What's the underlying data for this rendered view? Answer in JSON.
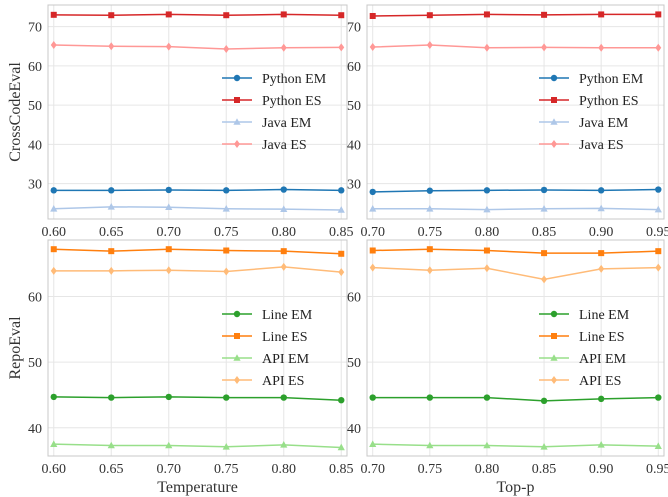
{
  "chart_data": [
    {
      "type": "line",
      "x": [
        0.6,
        0.65,
        0.7,
        0.75,
        0.8,
        0.85
      ],
      "xticks": [
        "0.60",
        "0.65",
        "0.70",
        "0.75",
        "0.80",
        "0.85"
      ],
      "xlim": [
        0.595,
        0.855
      ],
      "ylim": [
        21.0,
        75.5
      ],
      "yticks": [
        "30",
        "40",
        "50",
        "60",
        "70"
      ],
      "xlabel": "",
      "ylabel": "CrossCodeEval",
      "grid": true,
      "legend_position": "right",
      "series": [
        {
          "name": "Python EM",
          "color": "#1f77b4",
          "marker": "circle",
          "values": [
            28.3,
            28.3,
            28.4,
            28.3,
            28.5,
            28.3
          ]
        },
        {
          "name": "Python ES",
          "color": "#d62728",
          "marker": "square",
          "values": [
            73.0,
            72.9,
            73.1,
            72.9,
            73.1,
            72.9
          ]
        },
        {
          "name": "Java EM",
          "color": "#aec7e8",
          "marker": "triangle",
          "values": [
            23.6,
            24.1,
            24.0,
            23.6,
            23.5,
            23.3
          ]
        },
        {
          "name": "Java ES",
          "color": "#ff9896",
          "marker": "diamond",
          "values": [
            65.3,
            65.0,
            64.9,
            64.3,
            64.6,
            64.7
          ]
        }
      ]
    },
    {
      "type": "line",
      "x": [
        0.7,
        0.75,
        0.8,
        0.85,
        0.9,
        0.95
      ],
      "xticks": [
        "0.70",
        "0.75",
        "0.80",
        "0.85",
        "0.90",
        "0.95"
      ],
      "xlim": [
        0.695,
        0.955
      ],
      "ylim": [
        21.0,
        75.5
      ],
      "yticks": [
        "30",
        "40",
        "50",
        "60",
        "70"
      ],
      "xlabel": "",
      "ylabel": "",
      "grid": true,
      "legend_position": "right",
      "series": [
        {
          "name": "Python EM",
          "color": "#1f77b4",
          "marker": "circle",
          "values": [
            27.9,
            28.2,
            28.3,
            28.4,
            28.3,
            28.5
          ]
        },
        {
          "name": "Python ES",
          "color": "#d62728",
          "marker": "square",
          "values": [
            72.7,
            72.9,
            73.1,
            73.0,
            73.1,
            73.1
          ]
        },
        {
          "name": "Java EM",
          "color": "#aec7e8",
          "marker": "triangle",
          "values": [
            23.6,
            23.6,
            23.4,
            23.6,
            23.7,
            23.4
          ]
        },
        {
          "name": "Java ES",
          "color": "#ff9896",
          "marker": "diamond",
          "values": [
            64.8,
            65.3,
            64.6,
            64.7,
            64.6,
            64.6
          ]
        }
      ]
    },
    {
      "type": "line",
      "x": [
        0.6,
        0.65,
        0.7,
        0.75,
        0.8,
        0.85
      ],
      "xticks": [
        "0.60",
        "0.65",
        "0.70",
        "0.75",
        "0.80",
        "0.85"
      ],
      "xlim": [
        0.595,
        0.855
      ],
      "ylim": [
        35.7,
        68.6
      ],
      "yticks": [
        "40",
        "50",
        "60"
      ],
      "xlabel": "Temperature",
      "ylabel": "RepoEval",
      "grid": true,
      "legend_position": "right",
      "series": [
        {
          "name": "Line EM",
          "color": "#2ca02c",
          "marker": "circle",
          "values": [
            44.7,
            44.6,
            44.7,
            44.6,
            44.6,
            44.2
          ]
        },
        {
          "name": "Line ES",
          "color": "#ff7f0e",
          "marker": "square",
          "values": [
            67.2,
            66.9,
            67.2,
            67.0,
            66.9,
            66.5
          ]
        },
        {
          "name": "API EM",
          "color": "#98df8a",
          "marker": "triangle",
          "values": [
            37.5,
            37.3,
            37.3,
            37.1,
            37.4,
            37.0
          ]
        },
        {
          "name": "API ES",
          "color": "#ffbb78",
          "marker": "diamond",
          "values": [
            63.9,
            63.9,
            64.0,
            63.8,
            64.5,
            63.7
          ]
        }
      ]
    },
    {
      "type": "line",
      "x": [
        0.7,
        0.75,
        0.8,
        0.85,
        0.9,
        0.95
      ],
      "xticks": [
        "0.70",
        "0.75",
        "0.80",
        "0.85",
        "0.90",
        "0.95"
      ],
      "xlim": [
        0.695,
        0.955
      ],
      "ylim": [
        35.7,
        68.6
      ],
      "yticks": [
        "40",
        "50",
        "60"
      ],
      "xlabel": "Top-p",
      "ylabel": "",
      "grid": true,
      "legend_position": "right",
      "series": [
        {
          "name": "Line EM",
          "color": "#2ca02c",
          "marker": "circle",
          "values": [
            44.6,
            44.6,
            44.6,
            44.1,
            44.4,
            44.6
          ]
        },
        {
          "name": "Line ES",
          "color": "#ff7f0e",
          "marker": "square",
          "values": [
            67.0,
            67.2,
            67.0,
            66.6,
            66.6,
            66.9
          ]
        },
        {
          "name": "API EM",
          "color": "#98df8a",
          "marker": "triangle",
          "values": [
            37.5,
            37.3,
            37.3,
            37.1,
            37.4,
            37.2
          ]
        },
        {
          "name": "API ES",
          "color": "#ffbb78",
          "marker": "diamond",
          "values": [
            64.4,
            64.0,
            64.3,
            62.6,
            64.2,
            64.4
          ]
        }
      ]
    }
  ]
}
